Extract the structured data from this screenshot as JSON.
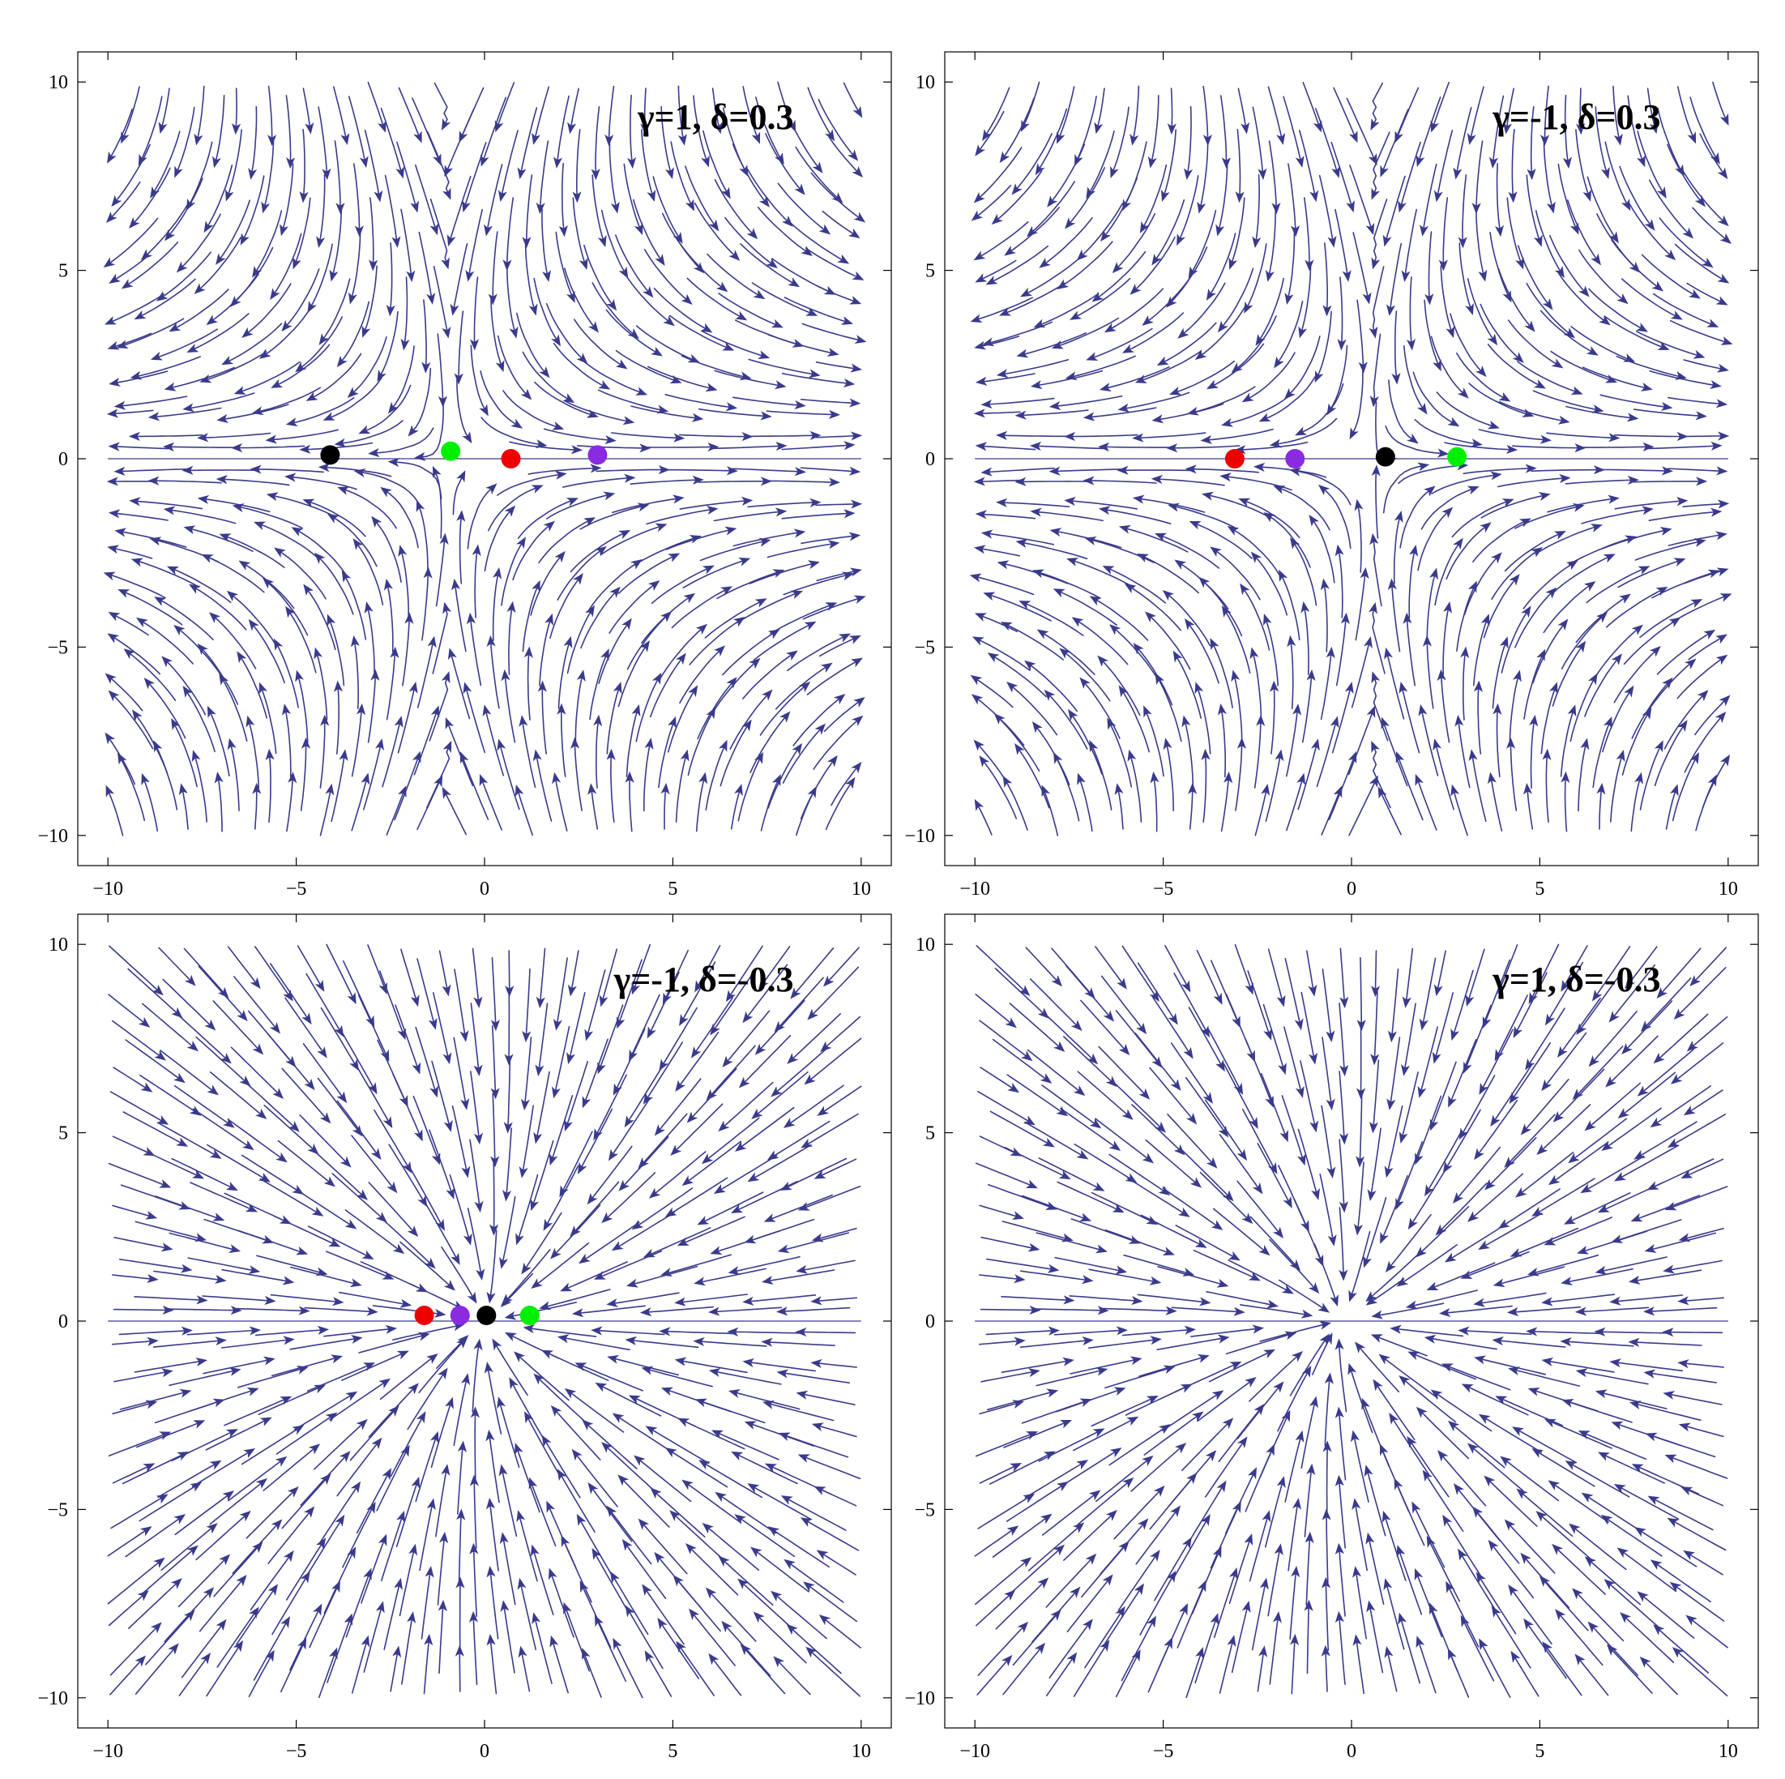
{
  "stream_color": "#3a3a8c",
  "chart_data": [
    {
      "type": "streamplot",
      "title": "γ=1, δ=0.3",
      "gamma": 1,
      "delta": 0.3,
      "xlim": [
        -10.8,
        10.8
      ],
      "ylim": [
        -10.8,
        10.8
      ],
      "xticks": [
        -10,
        -5,
        0,
        5,
        10
      ],
      "yticks": [
        -10,
        -5,
        0,
        5,
        10
      ],
      "xtick_labels": [
        "−10",
        "−5",
        "0",
        "5",
        "10"
      ],
      "ytick_labels": [
        "−10",
        "−5",
        "0",
        "5",
        "10"
      ],
      "points": [
        {
          "color": "#000000",
          "x": -4.1,
          "y": 0.1
        },
        {
          "color": "#00ee00",
          "x": -0.9,
          "y": 0.2
        },
        {
          "color": "#ee0000",
          "x": 0.7,
          "y": 0.0
        },
        {
          "color": "#8a2be2",
          "x": 3.0,
          "y": 0.1
        }
      ],
      "title_position": "top-right"
    },
    {
      "type": "streamplot",
      "title": "γ=-1, δ=0.3",
      "gamma": -1,
      "delta": 0.3,
      "xlim": [
        -10.8,
        10.8
      ],
      "ylim": [
        -10.8,
        10.8
      ],
      "xticks": [
        -10,
        -5,
        0,
        5,
        10
      ],
      "yticks": [
        -10,
        -5,
        0,
        5,
        10
      ],
      "xtick_labels": [
        "−10",
        "−5",
        "0",
        "5",
        "10"
      ],
      "ytick_labels": [
        "−10",
        "−5",
        "0",
        "5",
        "10"
      ],
      "points": [
        {
          "color": "#ee0000",
          "x": -3.1,
          "y": 0.0
        },
        {
          "color": "#8a2be2",
          "x": -1.5,
          "y": 0.0
        },
        {
          "color": "#000000",
          "x": 0.9,
          "y": 0.05
        },
        {
          "color": "#00ee00",
          "x": 2.8,
          "y": 0.05
        }
      ],
      "title_position": "top-right"
    },
    {
      "type": "streamplot",
      "title": "γ=-1, δ=-0.3",
      "gamma": -1,
      "delta": -0.3,
      "xlim": [
        -10.8,
        10.8
      ],
      "ylim": [
        -10.8,
        10.8
      ],
      "xticks": [
        -10,
        -5,
        0,
        5,
        10
      ],
      "yticks": [
        -10,
        -5,
        0,
        5,
        10
      ],
      "xtick_labels": [
        "−10",
        "−5",
        "0",
        "5",
        "10"
      ],
      "ytick_labels": [
        "−10",
        "−5",
        "0",
        "5",
        "10"
      ],
      "points": [
        {
          "color": "#ee0000",
          "x": -1.6,
          "y": 0.15
        },
        {
          "color": "#8a2be2",
          "x": -0.65,
          "y": 0.15
        },
        {
          "color": "#000000",
          "x": 0.05,
          "y": 0.15
        },
        {
          "color": "#00ee00",
          "x": 1.2,
          "y": 0.15
        }
      ],
      "title_position": "top-right"
    },
    {
      "type": "streamplot",
      "title": "γ=1, δ=-0.3",
      "gamma": 1,
      "delta": -0.3,
      "xlim": [
        -10.8,
        10.8
      ],
      "ylim": [
        -10.8,
        10.8
      ],
      "xticks": [
        -10,
        -5,
        0,
        5,
        10
      ],
      "yticks": [
        -10,
        -5,
        0,
        5,
        10
      ],
      "xtick_labels": [
        "−10",
        "−5",
        "0",
        "5",
        "10"
      ],
      "ytick_labels": [
        "−10",
        "−5",
        "0",
        "5",
        "10"
      ],
      "points": [],
      "title_position": "top-right"
    }
  ]
}
